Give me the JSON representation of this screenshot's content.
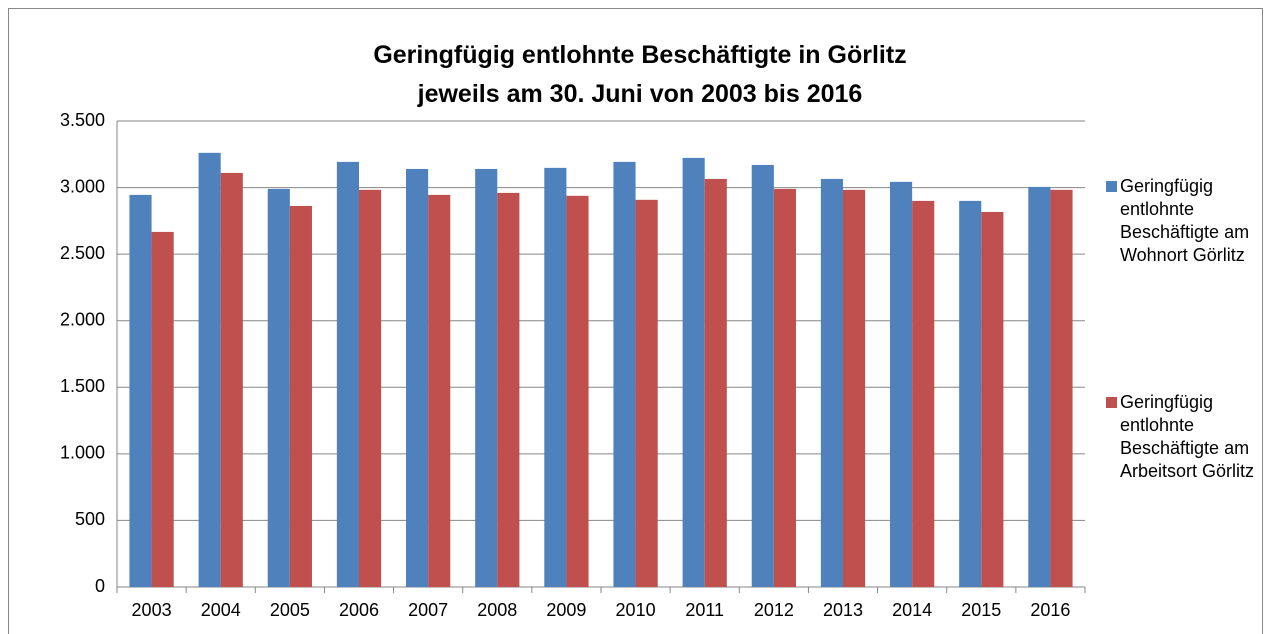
{
  "chart_data": {
    "type": "bar",
    "title": "Geringfügig entlohnte Beschäftigte in Görlitz\njeweils am 30. Juni von 2003 bis 2016",
    "categories": [
      "2003",
      "2004",
      "2005",
      "2006",
      "2007",
      "2008",
      "2009",
      "2010",
      "2011",
      "2012",
      "2013",
      "2014",
      "2015",
      "2016"
    ],
    "series": [
      {
        "name": "Geringfügig entlohnte Beschäftigte am Wohnort Görlitz",
        "color": "#4f81bd",
        "values": [
          2945,
          3261,
          2990,
          3193,
          3140,
          3140,
          3148,
          3193,
          3223,
          3170,
          3065,
          3043,
          2900,
          3005
        ]
      },
      {
        "name": "Geringfügig entlohnte Beschäftigte am Arbeitsort Görlitz",
        "color": "#c0504d",
        "values": [
          2667,
          3110,
          2862,
          2983,
          2945,
          2960,
          2938,
          2908,
          3065,
          2990,
          2983,
          2900,
          2817,
          2983
        ]
      }
    ],
    "ylim": [
      0,
      3500
    ],
    "yticks": [
      0,
      500,
      {
        "value": 1000,
        "label": "1.000"
      },
      {
        "value": 1500,
        "label": "1.500"
      },
      {
        "value": 2000,
        "label": "2.000"
      },
      {
        "value": 2500,
        "label": "2.500"
      },
      {
        "value": 3000,
        "label": "3.000"
      },
      {
        "value": 3500,
        "label": "3.500"
      }
    ],
    "grid": true,
    "legend": "right"
  }
}
